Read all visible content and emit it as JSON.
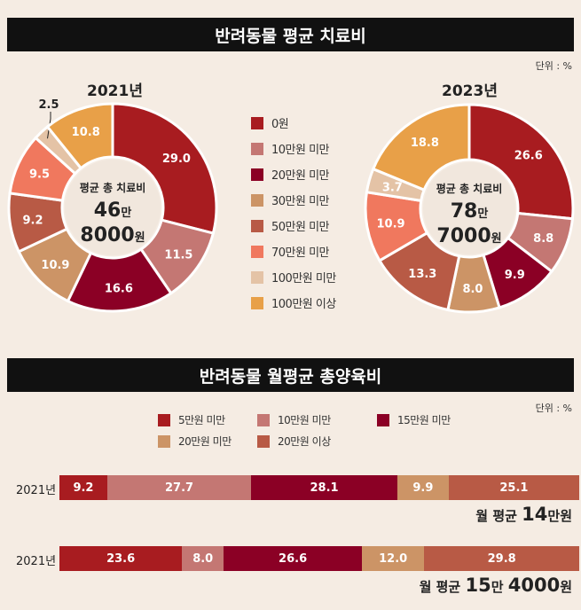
{
  "top_title": "반려동물 평균 치료비",
  "top_unit": "단위 : %",
  "bottom_title": "반려동물 월평균 총양육비",
  "bottom_unit": "단위 : %",
  "chart_data": [
    {
      "type": "pie",
      "title": "2021년",
      "donut": true,
      "center_label": {
        "line1": "평균 총 치료비",
        "line2_num": "46",
        "line2_unit": "만",
        "line3_num": "8000",
        "line3_unit": "원"
      },
      "categories": [
        "0원",
        "10만원 미만",
        "20만원 미만",
        "30만원 미만",
        "50만원 미만",
        "70만원 미만",
        "100만원 미만",
        "100만원 이상"
      ],
      "values": [
        29.0,
        11.5,
        16.6,
        10.9,
        9.2,
        9.5,
        2.5,
        10.8
      ],
      "labels": [
        "29.0",
        "11.5",
        "16.6",
        "10.9",
        "9.2",
        "9.5",
        "2.5",
        "10.8"
      ]
    },
    {
      "type": "pie",
      "title": "2023년",
      "donut": true,
      "center_label": {
        "line1": "평균 총 치료비",
        "line2_num": "78",
        "line2_unit": "만",
        "line3_num": "7000",
        "line3_unit": "원"
      },
      "categories": [
        "0원",
        "10만원 미만",
        "20만원 미만",
        "30만원 미만",
        "50만원 미만",
        "70만원 미만",
        "100만원 미만",
        "100만원 이상"
      ],
      "values": [
        26.6,
        8.8,
        9.9,
        8.0,
        13.3,
        10.9,
        3.7,
        18.8
      ],
      "labels": [
        "26.6",
        "8.8",
        "9.9",
        "8.0",
        "13.3",
        "10.9",
        "3.7",
        "18.8"
      ]
    },
    {
      "type": "bar",
      "stacked": true,
      "orientation": "horizontal",
      "legend": [
        "5만원 미만",
        "10만원 미만",
        "15만원 미만",
        "20만원 미만",
        "20만원 이상"
      ],
      "rows": [
        {
          "label": "2021년",
          "values": [
            9.2,
            27.7,
            28.1,
            9.9,
            25.1
          ],
          "labels": [
            "9.2",
            "27.7",
            "28.1",
            "9.9",
            "25.1"
          ],
          "total": {
            "prefix": "월 평균 ",
            "n1": "14",
            "u1": "만원",
            "n2": "",
            "u2": ""
          }
        },
        {
          "label": "2021년",
          "values": [
            23.6,
            8.0,
            26.6,
            12.0,
            29.8
          ],
          "labels": [
            "23.6",
            "8.0",
            "26.6",
            "12.0",
            "29.8"
          ],
          "total": {
            "prefix": "월 평균 ",
            "n1": "15",
            "u1": "만 ",
            "n2": "4000",
            "u2": "원"
          }
        }
      ]
    }
  ],
  "colors": {
    "pie": [
      "#a81c20",
      "#c47773",
      "#8b0025",
      "#cc9466",
      "#b85a45",
      "#f0785e",
      "#e4c3a6",
      "#e8a048"
    ],
    "bar": [
      "#a81c20",
      "#c47773",
      "#8b0025",
      "#cc9466",
      "#b85a45"
    ],
    "background": "#f5ece3",
    "header": "#111111"
  }
}
